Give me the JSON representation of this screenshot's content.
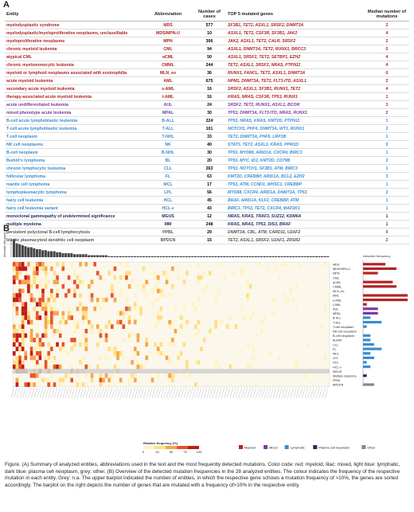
{
  "panel_a_label": "A",
  "panel_b_label": "B",
  "table": {
    "headers": [
      "Entity",
      "Abbreviation",
      "Number of cases",
      "TOP 5 mutated genes",
      "Median number of mutations"
    ],
    "rows": [
      {
        "entity": "myelodysplastic syndrome",
        "abbr": "MDS",
        "n": "577",
        "genes": "SF3B1, TET2, ASXL1, SRSF2, DNMT3A",
        "median": "2",
        "cls": "myeloid"
      },
      {
        "entity": "myelodysplastic/myeloproliferative neoplasms, unclassifiable",
        "abbr": "MDS/MPN-U",
        "n": "10",
        "genes": "ASXL1, TET2, CSF3R, SF3B1, JAK2",
        "median": "4",
        "cls": "myeloid"
      },
      {
        "entity": "myeloproliferative neoplasms",
        "abbr": "MPN",
        "n": "306",
        "genes": "JAK2, ASXL1, TET2, CALR, SRSF2",
        "median": "2",
        "cls": "myeloid"
      },
      {
        "entity": "chronic myeloid leukemia",
        "abbr": "CML",
        "n": "94",
        "genes": "ASXL1, DNMT3A, TET2, RUNX1, BRCC3",
        "median": "0",
        "cls": "myeloid"
      },
      {
        "entity": "atypical CML",
        "abbr": "aCML",
        "n": "50",
        "genes": "ASXL1, SRSF2, TET2, SETBP1, EZH2",
        "median": "4",
        "cls": "myeloid"
      },
      {
        "entity": "chronic myelomonocytic leukemia",
        "abbr": "CMML",
        "n": "244",
        "genes": "TET2, ASXL1, SRSF2, NRAS, PTPN11",
        "median": "4",
        "cls": "myeloid"
      },
      {
        "entity": "myeloid or lymphoid neoplasms associated with eosinophilia",
        "abbr": "MLN_eo",
        "n": "36",
        "genes": "RUNX1, FANCL, TET2, ASXL1, DNMT3A",
        "median": "0",
        "cls": "myeloid"
      },
      {
        "entity": "acute myeloid leukemia",
        "abbr": "AML",
        "n": "675",
        "genes": "NPM1, DNMT3A, TET2, FLT3-ITD, ASXL1",
        "median": "2",
        "cls": "myeloid"
      },
      {
        "entity": "secondary acute myeloid leukemia",
        "abbr": "s-AML",
        "n": "16",
        "genes": "SRSF2, ASXL1, SF3B1, RUNX1, TET2",
        "median": "4",
        "cls": "myeloid"
      },
      {
        "entity": "therapy-associated acute myeloid leukemia",
        "abbr": "t-AML",
        "n": "16",
        "genes": "KRAS, NRAS, CSF3R, TP53, RUNX1",
        "median": "1",
        "cls": "myeloid"
      },
      {
        "entity": "acute undifferentiated leukemia",
        "abbr": "AUL",
        "n": "24",
        "genes": "SRSF2, TET2, RUNX1, ASXL1, BCOR",
        "median": "3",
        "cls": "mixed"
      },
      {
        "entity": "mixed phenotype acute leukemia",
        "abbr": "MPAL",
        "n": "30",
        "genes": "TP53, DNMT3A, FLT3-ITD, NRAS, RUNX1",
        "median": "2",
        "cls": "mixed"
      },
      {
        "entity": "B-cell acute lymphoblastic leukemia",
        "abbr": "B-ALL",
        "n": "224",
        "genes": "TP53, NRAS, KRAS, KMT2D, PTPN11",
        "median": "1",
        "cls": "lymphatic"
      },
      {
        "entity": "T-cell acute lymphoblastic leukemia",
        "abbr": "T-ALL",
        "n": "101",
        "genes": "NOTCH1, PHF6, DNMT3A, WT1, RUNX1",
        "median": "2",
        "cls": "lymphatic"
      },
      {
        "entity": "T-cell neoplasm",
        "abbr": "T-NHL",
        "n": "33",
        "genes": "TET2, DNMT3A, PHF6, LRP1B",
        "median": "1",
        "cls": "lymphatic"
      },
      {
        "entity": "NK cell neoplasms",
        "abbr": "NK",
        "n": "40",
        "genes": "STAT3, TET2, ASXL1, KRAS, PPM1D",
        "median": "0",
        "cls": "lymphatic"
      },
      {
        "entity": "B-cell neoplasm",
        "abbr": "B-NHL",
        "n": "30",
        "genes": "TP53, MYD88, ARID1A, CXCR4, BIRC3",
        "median": "1",
        "cls": "lymphatic"
      },
      {
        "entity": "Burkitt's lymphoma",
        "abbr": "BL",
        "n": "20",
        "genes": "TP53, MYC, ID3, KMT2D, CD79B",
        "median": "2",
        "cls": "lymphatic"
      },
      {
        "entity": "chronic lymphocytic leukemia",
        "abbr": "CLL",
        "n": "263",
        "genes": "TP53, NOTCH1, SF3B1, ATM, BIRC3",
        "median": "1",
        "cls": "lymphatic"
      },
      {
        "entity": "follicular lymphoma",
        "abbr": "FL",
        "n": "63",
        "genes": "KMT2D, CREBBP, ARID1A, BCL2, EZH2",
        "median": "3",
        "cls": "lymphatic"
      },
      {
        "entity": "mantle cell lymphoma",
        "abbr": "MCL",
        "n": "17",
        "genes": "TP53, ATM, CCND1, WHSC1, CREBBP",
        "median": "1",
        "cls": "lymphatic"
      },
      {
        "entity": "lymphoplasmacytic lymphoma",
        "abbr": "LPL",
        "n": "56",
        "genes": "MYD88, CXCR4, ARID1A, DNMT3A, TP53",
        "median": "2",
        "cls": "lymphatic"
      },
      {
        "entity": "hairy cell leukemia",
        "abbr": "HCL",
        "n": "45",
        "genes": "BRAF, ARID1A, KLF2, CREBBP, ATM",
        "median": "1",
        "cls": "lymphatic"
      },
      {
        "entity": "hairy cell leukemia variant",
        "abbr": "HCL-v",
        "n": "43",
        "genes": "BIRC3, TP53, TET2, CXCR4, MAP2K1",
        "median": "1",
        "cls": "lymphatic"
      },
      {
        "entity": "monoclonal gammopathy of undetermined significance",
        "abbr": "MGUS",
        "n": "12",
        "genes": "NRAS, KRAS, TRAF3, SUZ12, KDM6A",
        "median": "1",
        "cls": "plasma"
      },
      {
        "entity": "multiple myeloma",
        "abbr": "MM",
        "n": "248",
        "genes": "KRAS, NRAS, TP53, DIS3, BRAF",
        "median": "1",
        "cls": "plasma"
      },
      {
        "entity": "persistent polyclonal B-cell lymphocytosis",
        "abbr": "PPBL",
        "n": "29",
        "genes": "DNMT3A, CBL, ATM, CARD11, U2AF2",
        "median": "0",
        "cls": "other"
      },
      {
        "entity": "blastic plasmacytoid dendritic cell neoplasm",
        "abbr": "BPDCN",
        "n": "15",
        "genes": "TET2, ASXL1, SRSF2, U2AF1, ZRSR2",
        "median": "2",
        "cls": "other"
      }
    ]
  },
  "figure_b": {
    "left_axis_label": "Absolute frequency",
    "right_axis_label": "Absolute frequency",
    "entities": [
      "MDS",
      "MDS/MPN-U",
      "MPN",
      "CML",
      "aCML",
      "CMML",
      "MLN_eo",
      "AML",
      "s-AML",
      "t-AML",
      "AUL",
      "MPAL",
      "B-ALL",
      "T-ALL",
      "T-cell neoplasm",
      "NK-cell neoplasm",
      "B-cell neoplasm",
      "Burkitt",
      "CLL",
      "FL",
      "MCL",
      "LPL",
      "HCL",
      "HCL-v",
      "MGUS",
      "Multiple myeloma",
      "PPBL",
      "BPDCN"
    ],
    "right_bar_values": [
      6,
      9,
      4,
      0,
      8,
      9,
      0,
      12,
      12,
      1,
      4,
      4,
      2,
      5,
      1,
      0,
      2,
      2,
      3,
      5,
      2,
      3,
      1,
      2,
      0,
      1,
      0,
      3
    ],
    "right_bar_classes": [
      "myeloid",
      "myeloid",
      "myeloid",
      "myeloid",
      "myeloid",
      "myeloid",
      "myeloid",
      "myeloid",
      "myeloid",
      "myeloid",
      "mixed",
      "mixed",
      "lymphatic",
      "lymphatic",
      "lymphatic",
      "lymphatic",
      "lymphatic",
      "lymphatic",
      "lymphatic",
      "lymphatic",
      "lymphatic",
      "lymphatic",
      "lymphatic",
      "lymphatic",
      "plasma",
      "plasma",
      "other",
      "other"
    ],
    "colorbar_title": "Relative frequency (%)",
    "colorbar_ticks": [
      "0",
      "25",
      "50",
      "75",
      "100"
    ],
    "legend": [
      {
        "label": "Myeloid",
        "color": "#b22424"
      },
      {
        "label": "Mixed",
        "color": "#7a3aa0"
      },
      {
        "label": "Lymphatic",
        "color": "#3b8ed0"
      },
      {
        "label": "Plasma cell neoplasm",
        "color": "#1e2b5e"
      },
      {
        "label": "Other",
        "color": "#888888"
      }
    ]
  },
  "caption": "Figure. (A) Summary of analyzed entities, abbreviations used in the text and the most frequently detected mutations. Color code: red: myeloid, lilac: mixed, light blue: lymphatic, dark blue: plasma cell neoplasm, grey: other. (B) Overview of the detected mutation frequencies in the 28 analyzed entities. The colour indicates the frequency of the respective mutation in each entity. Grey: n.a. The upper barplot indicated the number of entities, in which the respective gene schows a mutation frequency of >10%, the genes are sorted accordingly. The barplot on the right depicts the number of genes that are mutated with a frequency of>10% in the respective entity."
}
